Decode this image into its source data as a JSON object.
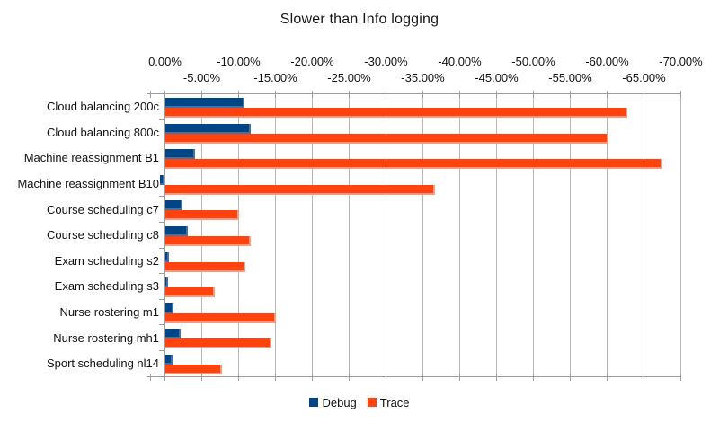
{
  "title": "Slower than Info logging",
  "chart_data": {
    "type": "bar",
    "orientation": "horizontal",
    "title": "Slower than Info logging",
    "value_unit": "%",
    "categories": [
      "Cloud balancing 200c",
      "Cloud balancing 800c",
      "Machine reassignment B1",
      "Machine reassignment B10",
      "Course scheduling c7",
      "Course scheduling c8",
      "Exam scheduling s2",
      "Exam scheduling s3",
      "Nurse rostering m1",
      "Nurse rostering mh1",
      "Sport scheduling nl14"
    ],
    "series": [
      {
        "name": "Debug",
        "color": "#004586",
        "values": [
          -10.8,
          -11.6,
          -4.1,
          0.7,
          -2.4,
          -3.1,
          -0.6,
          -0.4,
          -1.2,
          -2.1,
          -1.0
        ]
      },
      {
        "name": "Trace",
        "color": "#FF420E",
        "values": [
          -62.8,
          -60.2,
          -67.5,
          -36.7,
          -10.0,
          -11.7,
          -10.9,
          -6.8,
          -15.0,
          -14.4,
          -7.8
        ]
      }
    ],
    "xlim": [
      0,
      -70
    ],
    "x_tick_step": -5,
    "x_tick_labels_row1": [
      "0.00%",
      "-10.00%",
      "-20.00%",
      "-30.00%",
      "-40.00%",
      "-50.00%",
      "-60.00%",
      "-70.00%"
    ],
    "x_tick_labels_row2": [
      "-5.00%",
      "-15.00%",
      "-25.00%",
      "-35.00%",
      "-45.00%",
      "-55.00%",
      "-65.00%"
    ],
    "grid": true,
    "axis_labels_position": "top",
    "axis_labels_stagger": true,
    "legend_position": "bottom"
  },
  "legend": {
    "items": [
      {
        "label": "Debug",
        "color": "#004586"
      },
      {
        "label": "Trace",
        "color": "#FF420E"
      }
    ]
  }
}
